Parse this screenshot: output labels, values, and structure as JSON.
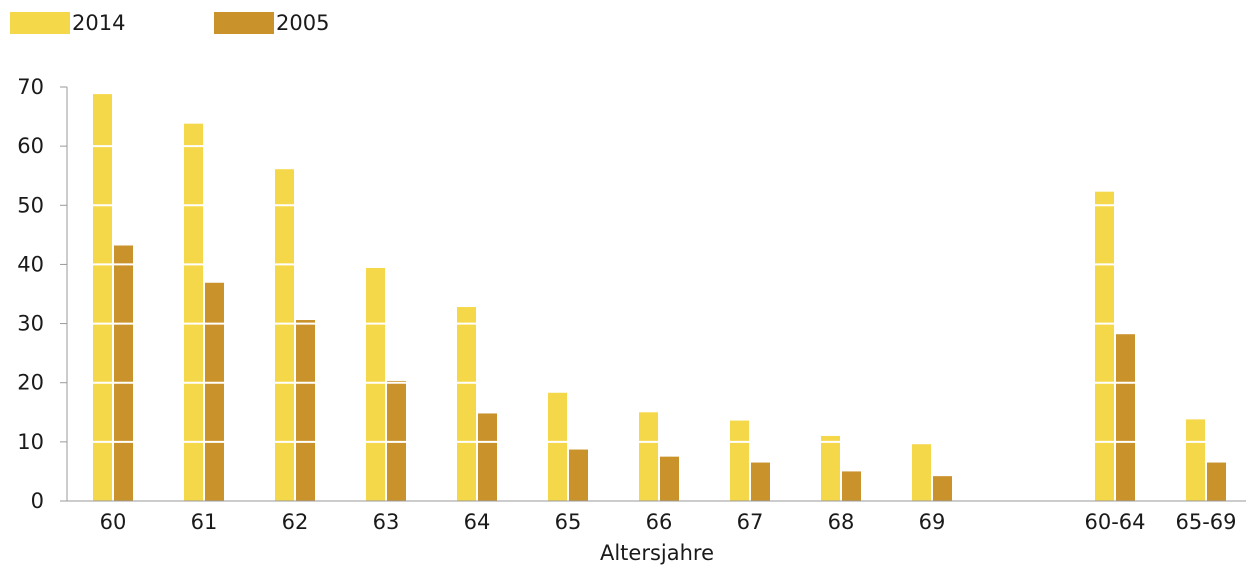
{
  "chart_data": {
    "type": "bar",
    "xlabel": "Altersjahre",
    "ylabel": "",
    "ylim": [
      0,
      70
    ],
    "yticks": [
      0,
      10,
      20,
      30,
      40,
      50,
      60,
      70
    ],
    "grid": true,
    "legend_position": "top-left",
    "categories": [
      "60",
      "61",
      "62",
      "63",
      "64",
      "65",
      "66",
      "67",
      "68",
      "69",
      "60-64",
      "65-69"
    ],
    "series": [
      {
        "name": "2014",
        "color": "#f5d84a",
        "values": [
          68.8,
          63.8,
          56.1,
          39.4,
          32.8,
          18.3,
          15.0,
          13.6,
          11.0,
          9.6,
          52.3,
          13.8
        ]
      },
      {
        "name": "2005",
        "color": "#c9922b",
        "values": [
          43.2,
          36.9,
          30.6,
          20.3,
          14.8,
          8.7,
          7.5,
          6.5,
          5.0,
          4.2,
          28.2,
          6.5
        ]
      }
    ]
  }
}
